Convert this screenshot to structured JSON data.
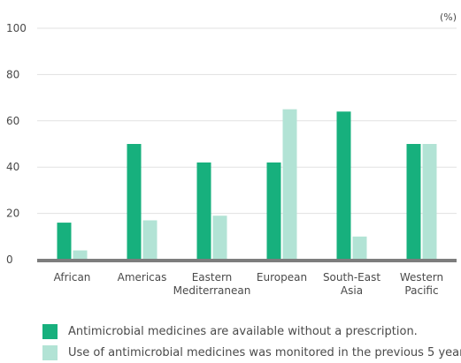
{
  "chart_data": {
    "type": "bar",
    "unit_label": "(%)",
    "categories": [
      [
        "African"
      ],
      [
        "Americas"
      ],
      [
        "Eastern",
        "Mediterranean"
      ],
      [
        "European"
      ],
      [
        "South-East",
        "Asia"
      ],
      [
        "Western",
        "Pacific"
      ]
    ],
    "series": [
      {
        "name": "Antimicrobial medicines are available without a prescription.",
        "color": "#17b07d",
        "values": [
          16,
          50,
          42,
          42,
          64,
          50
        ]
      },
      {
        "name": "Use of antimicrobial medicines was monitored in the previous 5 years.",
        "color": "#b2e3d5",
        "values": [
          4,
          17,
          19,
          65,
          10,
          50
        ]
      }
    ],
    "ylim": [
      0,
      100
    ],
    "yticks": [
      0,
      20,
      40,
      60,
      80,
      100
    ],
    "grid": true,
    "legend_position": "bottom"
  }
}
